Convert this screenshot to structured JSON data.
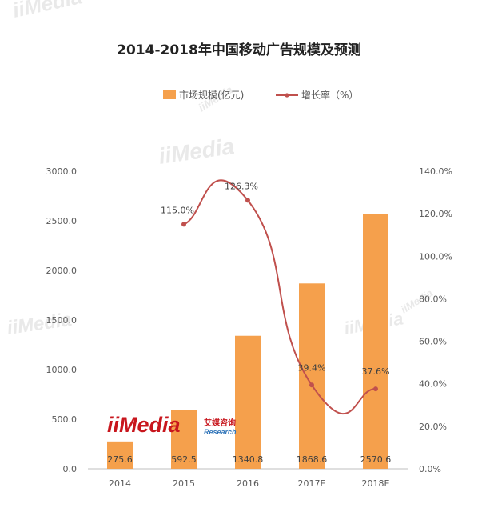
{
  "chart_data": {
    "type": "bar",
    "title": "2014-2018年中国移动广告规模及预测",
    "categories": [
      "2014",
      "2015",
      "2016",
      "2017E",
      "2018E"
    ],
    "series": [
      {
        "name": "市场规模(亿元)",
        "type": "bar",
        "axis": "left",
        "color": "#F5A04C",
        "values": [
          275.6,
          592.5,
          1340.8,
          1868.6,
          2570.6
        ],
        "labels": [
          "275.6",
          "592.5",
          "1340.8",
          "1868.6",
          "2570.6"
        ]
      },
      {
        "name": "增长率(%)",
        "type": "line",
        "axis": "right",
        "color": "#C0504D",
        "values": [
          null,
          115.0,
          126.3,
          39.4,
          37.6
        ],
        "labels": [
          "",
          "115.0%",
          "126.3%",
          "39.4%",
          "37.6%"
        ]
      }
    ],
    "legend": {
      "position": "top",
      "bar_label": "市场规模(亿元)",
      "line_label": "增长率（%）"
    },
    "y_left": {
      "min": 0,
      "max": 3000,
      "ticks": [
        0,
        500,
        1000,
        1500,
        2000,
        2500,
        3000
      ],
      "tick_labels": [
        "0.0",
        "500.0",
        "1000.0",
        "1500.0",
        "2000.0",
        "2500.0",
        "3000.0"
      ]
    },
    "y_right": {
      "min": 0,
      "max": 140,
      "ticks": [
        0,
        20,
        40,
        60,
        80,
        100,
        120,
        140
      ],
      "tick_labels": [
        "0.0%",
        "20.0%",
        "40.0%",
        "60.0%",
        "80.0%",
        "100.0%",
        "120.0%",
        "140.0%"
      ]
    },
    "grid": false
  },
  "watermark": {
    "brand": "iiMedia",
    "brand_sub": "Research",
    "brand_cn": "艾媒咨询",
    "brand_color": "#C8161D",
    "accent_color": "#2E73B8"
  }
}
